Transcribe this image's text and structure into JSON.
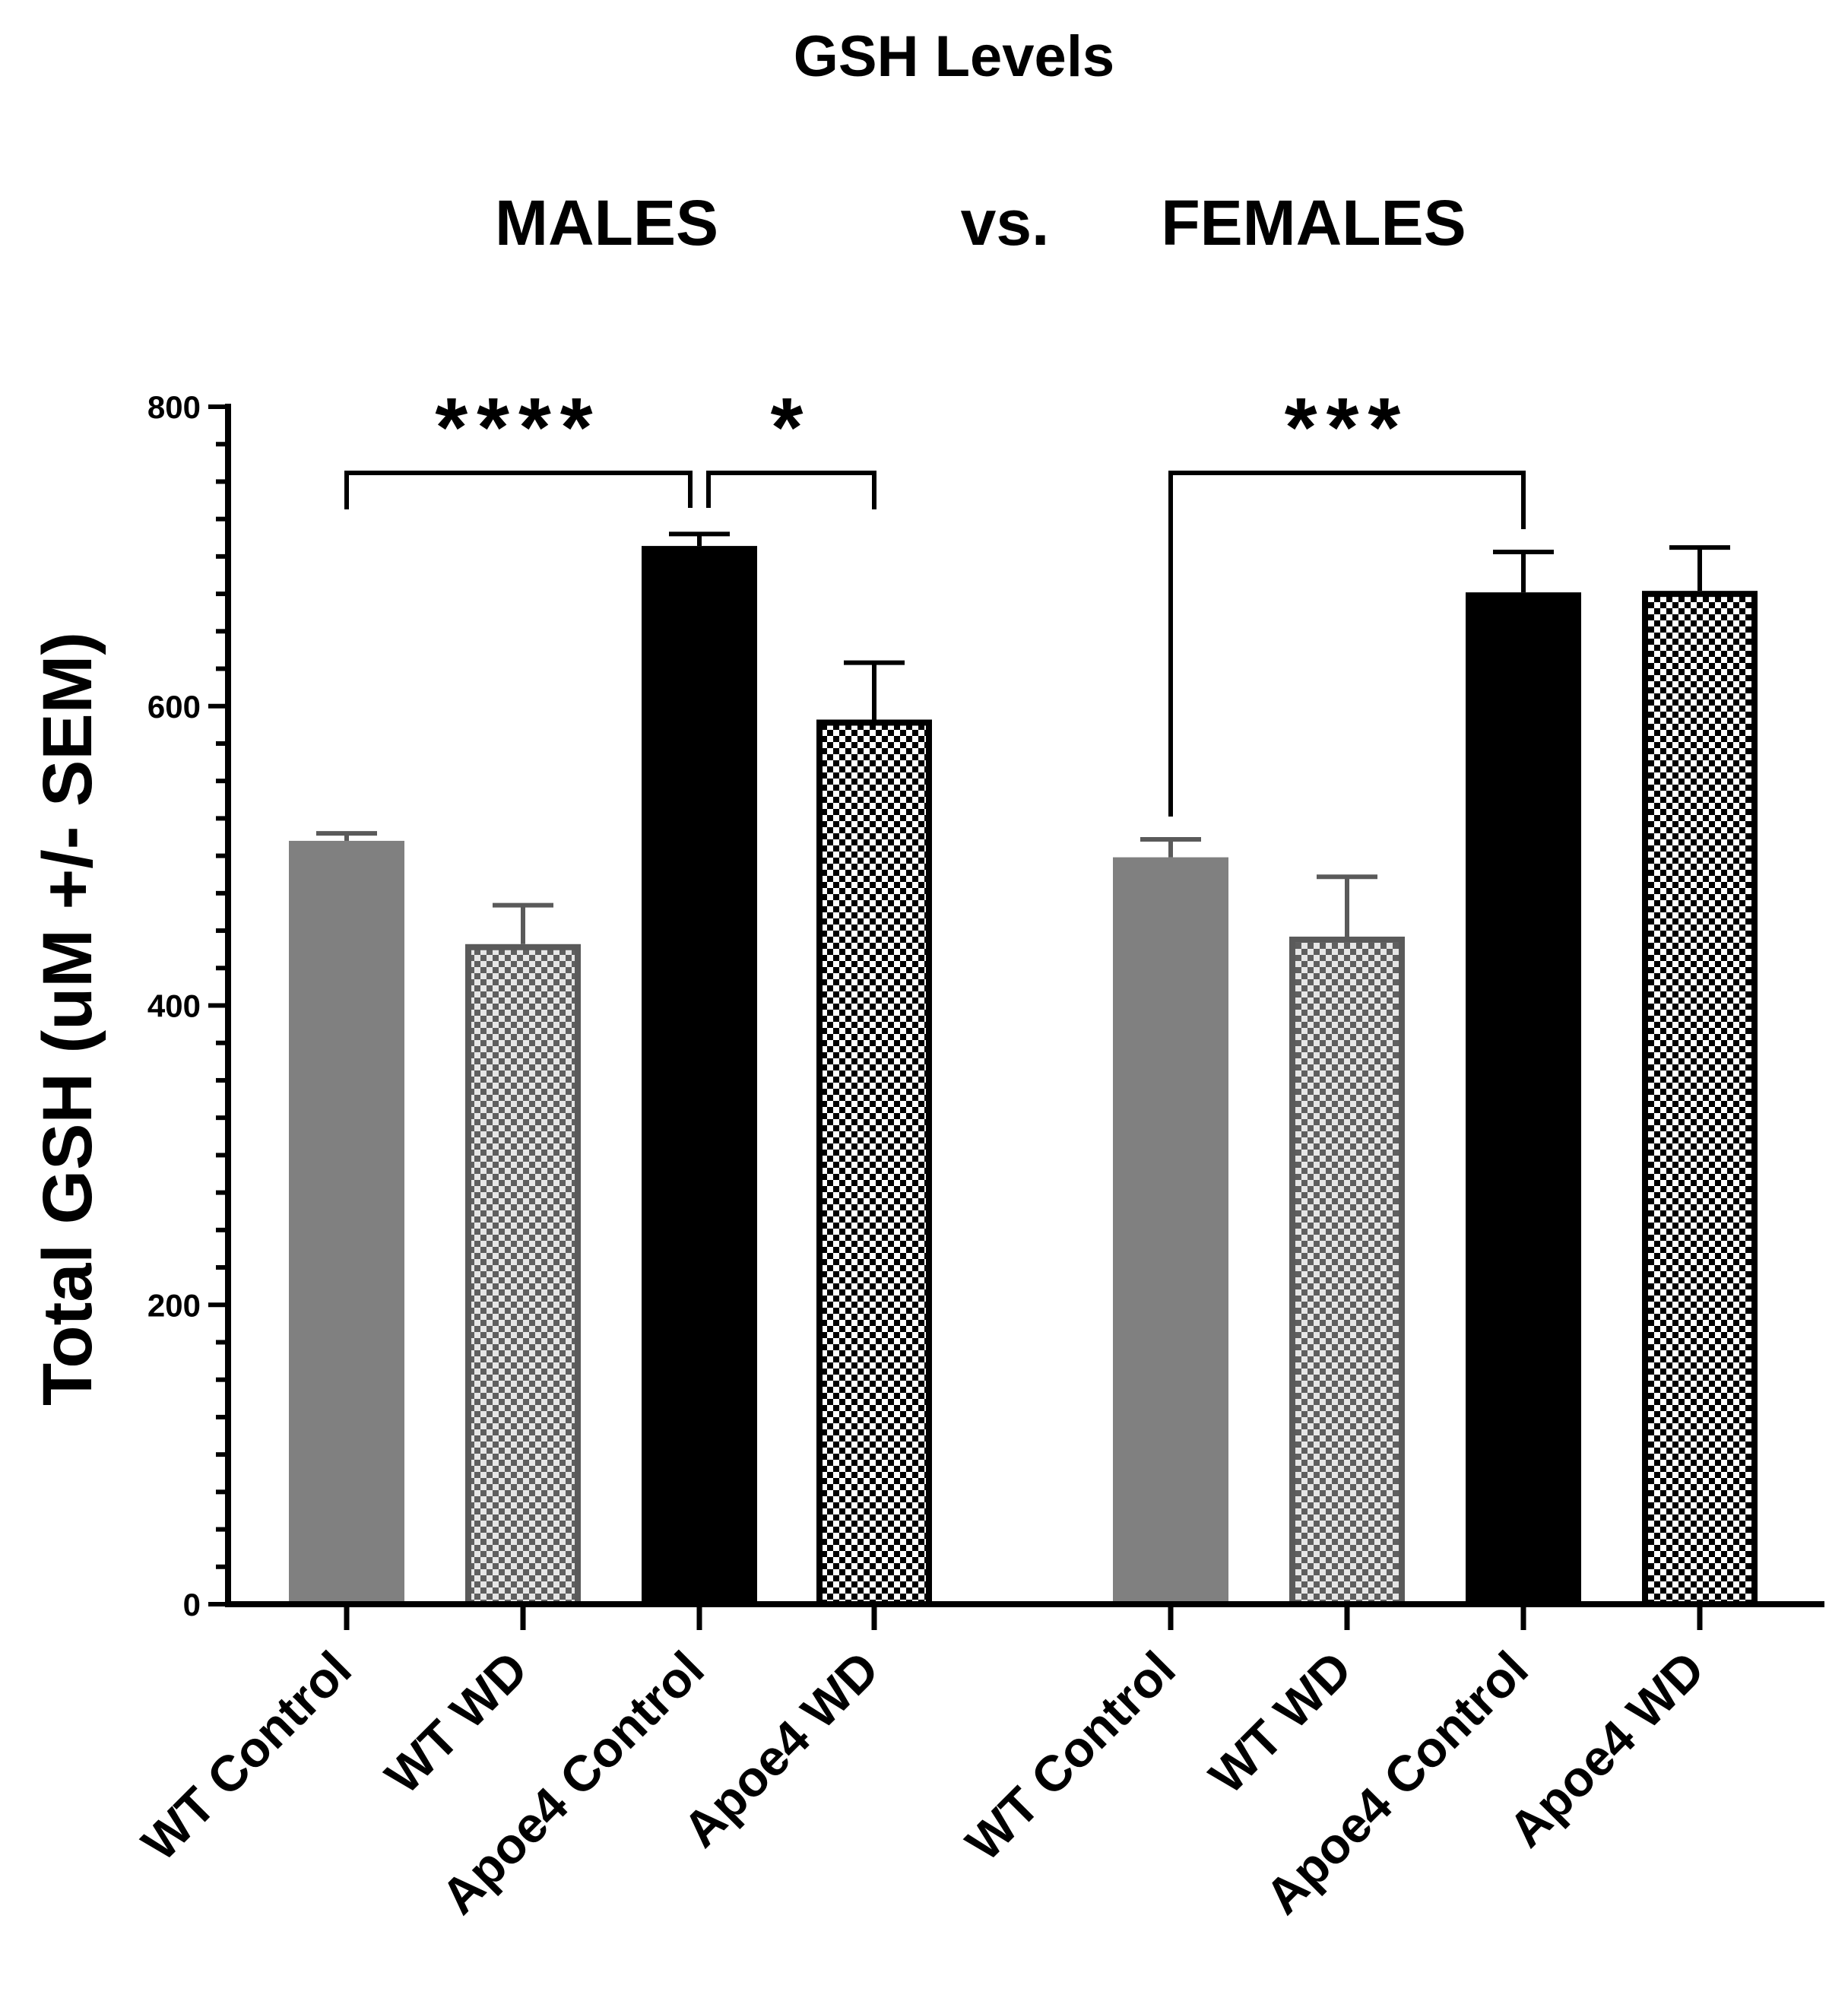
{
  "chart_data": {
    "type": "bar",
    "title": "GSH Levels",
    "group_titles": {
      "males": "MALES",
      "vs": "vs.",
      "females": "FEMALES"
    },
    "ylabel": "Total GSH (uM +/- SEM)",
    "xlabel": "",
    "ylim": [
      0,
      800
    ],
    "yticks": [
      0,
      200,
      400,
      600,
      800
    ],
    "grid": false,
    "legend": "none",
    "categories": [
      "WT Control",
      "WT WD",
      "Apoe4 Control",
      "Apoe4 WD",
      "WT Control",
      "WT WD",
      "Apoe4 Control",
      "Apoe4 WD"
    ],
    "groups": [
      "MALES",
      "MALES",
      "MALES",
      "MALES",
      "FEMALES",
      "FEMALES",
      "FEMALES",
      "FEMALES"
    ],
    "values": [
      510,
      441,
      707,
      591,
      499,
      446,
      676,
      677
    ],
    "errors": [
      5,
      26,
      8,
      38,
      12,
      40,
      27,
      29
    ],
    "colors": {
      "gray": "#808080",
      "black": "#000000",
      "white": "#ffffff"
    },
    "bar_styles": [
      "solid-gray",
      "check-gray",
      "solid-black",
      "check-black",
      "solid-gray",
      "check-gray",
      "solid-black",
      "check-black"
    ],
    "significance": [
      {
        "from": 0,
        "to": 2,
        "label": "****"
      },
      {
        "from": 2,
        "to": 3,
        "label": "*"
      },
      {
        "from": 4,
        "to": 6,
        "label": "***"
      }
    ]
  }
}
